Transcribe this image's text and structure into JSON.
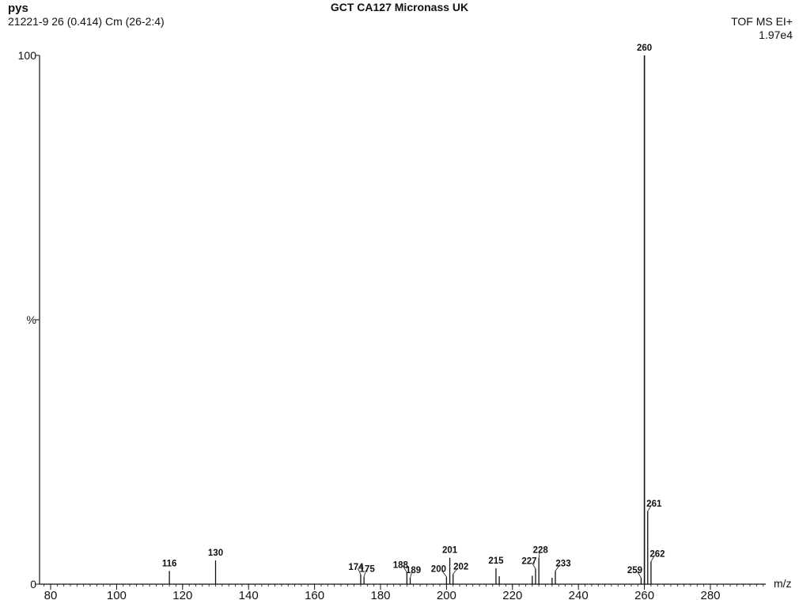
{
  "header": {
    "sample": "pys",
    "scan_info": "21221-9 26 (0.414) Cm (26-2:4)",
    "title": "GCT CA127 Micronass UK",
    "mode": "TOF MS EI+",
    "max_intensity": "1.97e4"
  },
  "chart_data": {
    "type": "bar",
    "title": "GCT CA127 Micronass UK",
    "xlabel": "m/z",
    "ylabel": "%",
    "xlim": [
      78,
      300
    ],
    "ylim": [
      0,
      100
    ],
    "x_ticks": [
      80,
      100,
      120,
      140,
      160,
      180,
      200,
      220,
      240,
      260,
      280
    ],
    "y_ticks": [
      {
        "value": 0,
        "label": "0"
      },
      {
        "value": 50,
        "label": "%"
      },
      {
        "value": 100,
        "label": "100"
      }
    ],
    "peaks": [
      {
        "mz": 116,
        "intensity": 2.5,
        "label": "116"
      },
      {
        "mz": 130,
        "intensity": 4.5,
        "label": "130"
      },
      {
        "mz": 174,
        "intensity": 1.8,
        "label": "174"
      },
      {
        "mz": 175,
        "intensity": 1.4,
        "label": "175"
      },
      {
        "mz": 188,
        "intensity": 2.2,
        "label": "188"
      },
      {
        "mz": 189,
        "intensity": 1.2,
        "label": "189"
      },
      {
        "mz": 200,
        "intensity": 1.4,
        "label": "200"
      },
      {
        "mz": 201,
        "intensity": 5.0,
        "label": "201"
      },
      {
        "mz": 202,
        "intensity": 1.9,
        "label": "202"
      },
      {
        "mz": 215,
        "intensity": 3.0,
        "label": "215"
      },
      {
        "mz": 216,
        "intensity": 1.5,
        "label": ""
      },
      {
        "mz": 226,
        "intensity": 1.6,
        "label": ""
      },
      {
        "mz": 227,
        "intensity": 2.9,
        "label": "227"
      },
      {
        "mz": 228,
        "intensity": 5.0,
        "label": "228"
      },
      {
        "mz": 232,
        "intensity": 1.2,
        "label": ""
      },
      {
        "mz": 233,
        "intensity": 2.5,
        "label": "233"
      },
      {
        "mz": 259,
        "intensity": 1.2,
        "label": "259"
      },
      {
        "mz": 260,
        "intensity": 100,
        "label": "260"
      },
      {
        "mz": 261,
        "intensity": 13.8,
        "label": "261"
      },
      {
        "mz": 262,
        "intensity": 4.3,
        "label": "262"
      }
    ]
  }
}
